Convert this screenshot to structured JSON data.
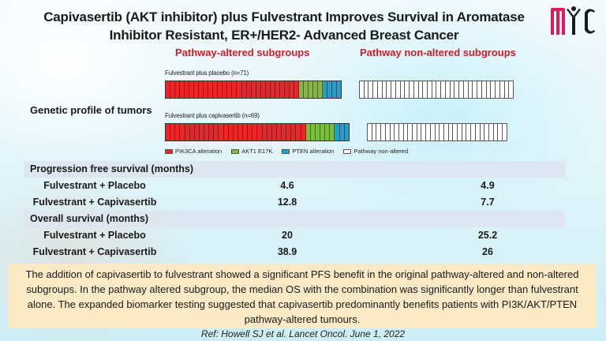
{
  "header": {
    "title_line1": "Capivasertib (AKT inhibitor) plus Fulvestrant Improves Survival in Aromatase",
    "title_line2": "Inhibitor Resistant, ER+/HER2- Advanced Breast Cancer",
    "logo": "MiC"
  },
  "subgroups": {
    "altered": "Pathway-altered subgroups",
    "non_altered": "Pathway non-altered subgroups"
  },
  "genetic_profile": {
    "label": "Genetic profile of tumors",
    "arms": [
      {
        "label": "Fulvestrant plus placebo (n=71)",
        "altered_segments": {
          "PIK3CA alteration": 28,
          "AKT1 E17K": 5,
          "PTEN alteration": 4
        },
        "non_altered_segments": 34
      },
      {
        "label": "Fulvestrant plus capivasertib (n=69)",
        "altered_segments": {
          "PIK3CA alteration": 29,
          "AKT1 E17K": 6,
          "PTEN alteration": 3
        },
        "non_altered_segments": 31
      }
    ],
    "legend": [
      {
        "label": "PIK3CA alteration",
        "color": "#e8262a"
      },
      {
        "label": "AKT1 E17K",
        "color": "#7dbb43"
      },
      {
        "label": "PTEN alteration",
        "color": "#1f9fd0"
      },
      {
        "label": "Pathway non-altered",
        "color": "#ffffff"
      }
    ]
  },
  "table": {
    "pfs_header": "Progression free survival (months)",
    "os_header": "Overall survival (months)",
    "rows": {
      "pfs_placebo": {
        "label": "Fulvestrant + Placebo",
        "altered": "4.6",
        "non_altered": "4.9"
      },
      "pfs_capi": {
        "label": "Fulvestrant + Capivasertib",
        "altered": "12.8",
        "non_altered": "7.7"
      },
      "os_placebo": {
        "label": "Fulvestrant + Placebo",
        "altered": "20",
        "non_altered": "25.2"
      },
      "os_capi": {
        "label": "Fulvestrant + Capivasertib",
        "altered": "38.9",
        "non_altered": "26"
      }
    }
  },
  "callout": {
    "text": "The addition of capivasertib to fulvestrant showed a significant PFS benefit in the original pathway-altered and non-altered subgroups. In the pathway altered subgroup, the median OS with the combination was significantly longer than fulvestrant alone. The expanded biomarker testing suggested that capivasertib predominantly benefits patients with PI3K/AKT/PTEN pathway-altered tumours."
  },
  "reference": "Ref: Howell SJ et al.  Lancet Oncol. June 1, 2022",
  "chart_data": {
    "type": "table",
    "title": "Capivasertib (AKT inhibitor) plus Fulvestrant Improves Survival in Aromatase Inhibitor Resistant, ER+/HER2- Advanced Breast Cancer",
    "columns": [
      "Pathway-altered subgroups",
      "Pathway non-altered subgroups"
    ],
    "sections": [
      {
        "name": "Progression free survival (months)",
        "rows": [
          {
            "arm": "Fulvestrant + Placebo",
            "values": [
              4.6,
              4.9
            ]
          },
          {
            "arm": "Fulvestrant + Capivasertib",
            "values": [
              12.8,
              7.7
            ]
          }
        ]
      },
      {
        "name": "Overall survival (months)",
        "rows": [
          {
            "arm": "Fulvestrant + Placebo",
            "values": [
              20,
              25.2
            ]
          },
          {
            "arm": "Fulvestrant + Capivasertib",
            "values": [
              38.9,
              26
            ]
          }
        ]
      }
    ],
    "genetic_profile": {
      "type": "stacked_bar",
      "categories": [
        "Fulvestrant plus placebo (n=71)",
        "Fulvestrant plus capivasertib (n=69)"
      ],
      "series": [
        {
          "name": "PIK3CA alteration",
          "values": [
            28,
            29
          ]
        },
        {
          "name": "AKT1 E17K",
          "values": [
            5,
            6
          ]
        },
        {
          "name": "PTEN alteration",
          "values": [
            4,
            3
          ]
        },
        {
          "name": "Pathway non-altered",
          "values": [
            34,
            31
          ]
        }
      ]
    }
  }
}
